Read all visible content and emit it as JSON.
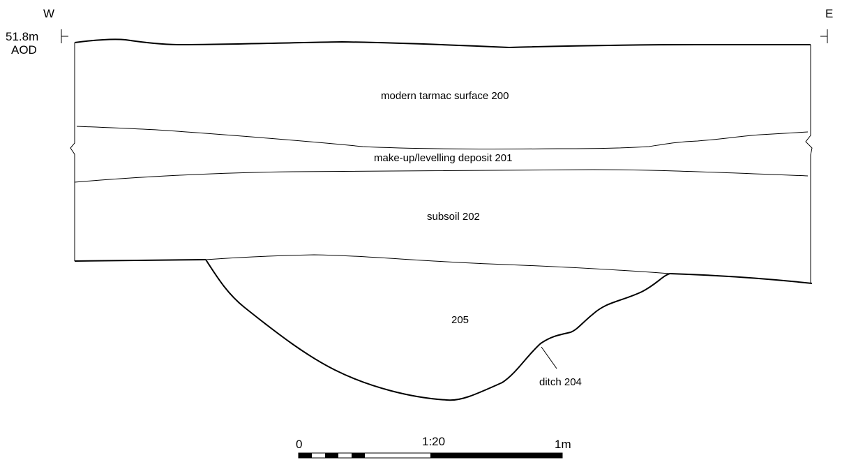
{
  "orientation": {
    "west": "W",
    "east": "E"
  },
  "datum": {
    "level": "51.8m",
    "unit": "AOD"
  },
  "layers": {
    "tarmac": "modern tarmac surface 200",
    "makeup": "make-up/levelling deposit 201",
    "subsoil": "subsoil 202",
    "fill": "205",
    "ditch": "ditch 204"
  },
  "scale": {
    "start": "0",
    "ratio": "1:20",
    "end": "1m"
  },
  "colors": {
    "line": "#000000",
    "background": "#ffffff"
  }
}
